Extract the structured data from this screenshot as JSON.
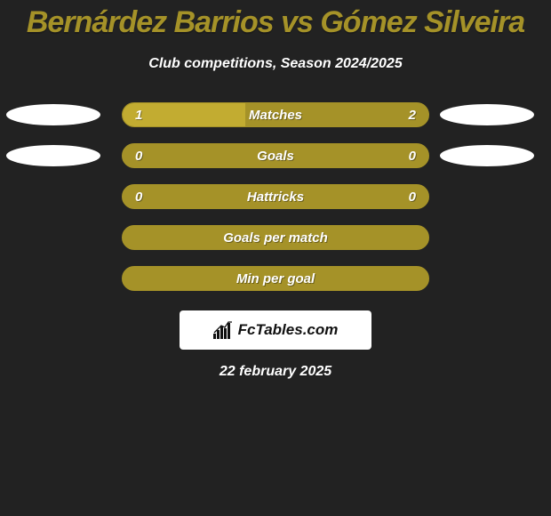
{
  "background_color": "#222222",
  "title": {
    "text": "Bernárdez Barrios vs Gómez Silveira",
    "fontsize": 34,
    "color": "#a59228"
  },
  "subtitle": {
    "text": "Club competitions, Season 2024/2025",
    "fontsize": 16,
    "color": "#ffffff"
  },
  "bar_style": {
    "track_color": "#a59228",
    "track_border": "#a59228",
    "fill_color": "#c2ac31",
    "label_color": "#ffffff",
    "value_color": "#ffffff",
    "label_fontsize": 15,
    "value_fontsize": 15
  },
  "badge_style": {
    "fill": "#ffffff"
  },
  "rows": [
    {
      "label": "Matches",
      "left_value": "1",
      "right_value": "2",
      "left_ratio": 0.4,
      "show_left_badge": true,
      "show_right_badge": true
    },
    {
      "label": "Goals",
      "left_value": "0",
      "right_value": "0",
      "left_ratio": 0.0,
      "show_left_badge": true,
      "show_right_badge": true
    },
    {
      "label": "Hattricks",
      "left_value": "0",
      "right_value": "0",
      "left_ratio": 0.0,
      "show_left_badge": false,
      "show_right_badge": false
    },
    {
      "label": "Goals per match",
      "left_value": "",
      "right_value": "",
      "left_ratio": 0.0,
      "show_left_badge": false,
      "show_right_badge": false
    },
    {
      "label": "Min per goal",
      "left_value": "",
      "right_value": "",
      "left_ratio": 0.0,
      "show_left_badge": false,
      "show_right_badge": false
    }
  ],
  "footer_logo": {
    "background": "#ffffff",
    "text": "FcTables.com",
    "fontsize": 17
  },
  "footer_date": {
    "text": "22 february 2025",
    "fontsize": 16,
    "color": "#ffffff"
  }
}
